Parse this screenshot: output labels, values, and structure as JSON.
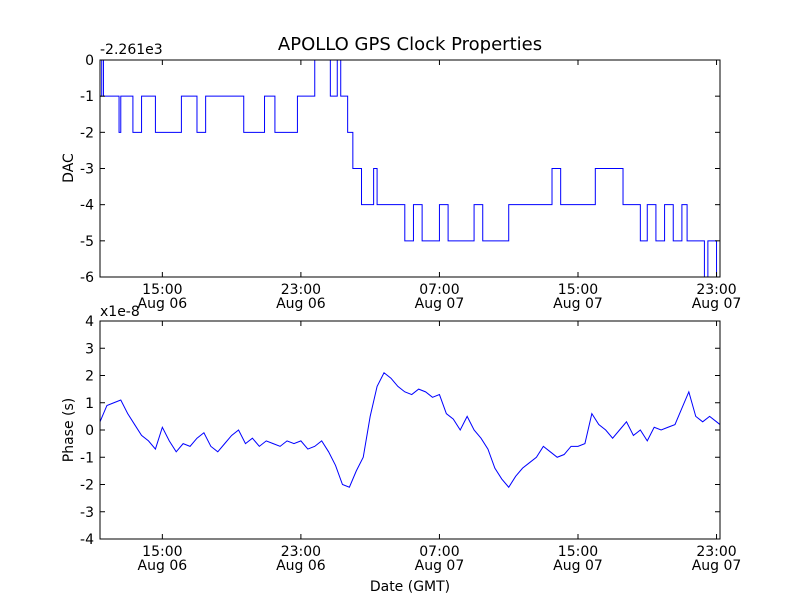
{
  "figure": {
    "title": "APOLLO GPS Clock Properties",
    "xlabel": "Date (GMT)"
  },
  "chart_data": [
    {
      "type": "line",
      "ylabel": "DAC",
      "offset_label": "-2.261e3",
      "ylim": [
        -6,
        0
      ],
      "yticks": [
        0,
        -1,
        -2,
        -3,
        -4,
        -5,
        -6
      ],
      "ytick_labels": [
        "0",
        "-1",
        "-2",
        "-3",
        "-4",
        "-5",
        "-6"
      ],
      "xlim_hours": [
        11.4,
        47.2
      ],
      "xticks_hours": [
        15,
        23,
        31,
        39,
        47
      ],
      "xtick_labels": [
        [
          "15:00",
          "Aug 06"
        ],
        [
          "23:00",
          "Aug 06"
        ],
        [
          "07:00",
          "Aug 07"
        ],
        [
          "15:00",
          "Aug 07"
        ],
        [
          "23:00",
          "Aug 07"
        ]
      ],
      "series": [
        {
          "name": "DAC",
          "color": "#0000ff",
          "x": [
            11.4,
            11.5,
            11.6,
            11.7,
            12.0,
            12.2,
            12.5,
            12.6,
            12.8,
            13.0,
            13.3,
            13.8,
            14.4,
            14.6,
            15.0,
            16.1,
            16.3,
            17.0,
            17.5,
            18.0,
            19.0,
            19.7,
            20.5,
            20.9,
            21.5,
            22.4,
            22.5,
            22.8,
            23.1,
            23.8,
            24.7,
            25.1,
            25.3,
            25.4,
            25.6,
            25.7,
            26.0,
            26.4,
            26.5,
            26.6,
            27.2,
            27.4,
            27.5,
            27.8,
            28.0,
            28.4,
            29.0,
            29.5,
            30.0,
            31.0,
            31.5,
            32.0,
            32.5,
            33.0,
            33.5,
            34.3,
            35.0,
            35.6,
            36.0,
            37.5,
            38.0,
            38.5,
            39.2,
            40.0,
            41.6,
            42.0,
            42.6,
            43.0,
            43.5,
            44.0,
            44.5,
            45.0,
            45.3,
            45.9,
            46.3,
            46.5,
            47.0,
            47.2
          ],
          "y": [
            -1,
            0,
            -1,
            -1,
            -1,
            -1,
            -2,
            -1,
            -1,
            -1,
            -2,
            -1,
            -1,
            -2,
            -2,
            -1,
            -1,
            -2,
            -1,
            -1,
            -1,
            -2,
            -2,
            -1,
            -2,
            -2,
            -2,
            -1,
            -1,
            0,
            -1,
            0,
            -1,
            -1,
            -1,
            -2,
            -3,
            -3,
            -4,
            -4,
            -3,
            -4,
            -4,
            -4,
            -4,
            -4,
            -5,
            -4,
            -5,
            -4,
            -5,
            -5,
            -5,
            -4,
            -5,
            -5,
            -4,
            -4,
            -4,
            -3,
            -4,
            -4,
            -4,
            -3,
            -4,
            -4,
            -5,
            -4,
            -5,
            -4,
            -5,
            -4,
            -5,
            -5,
            -6,
            -5,
            -6,
            -5
          ]
        }
      ]
    },
    {
      "type": "line",
      "ylabel": "Phase (s)",
      "offset_label": "x1e-8",
      "ylim": [
        -4,
        4
      ],
      "yticks": [
        4,
        3,
        2,
        1,
        0,
        -1,
        -2,
        -3,
        -4
      ],
      "ytick_labels": [
        "4",
        "3",
        "2",
        "1",
        "0",
        "-1",
        "-2",
        "-3",
        "-4"
      ],
      "xlim_hours": [
        11.4,
        47.2
      ],
      "xticks_hours": [
        15,
        23,
        31,
        39,
        47
      ],
      "xtick_labels": [
        [
          "15:00",
          "Aug 06"
        ],
        [
          "23:00",
          "Aug 06"
        ],
        [
          "07:00",
          "Aug 07"
        ],
        [
          "15:00",
          "Aug 07"
        ],
        [
          "23:00",
          "Aug 07"
        ]
      ],
      "series": [
        {
          "name": "Phase",
          "color": "#0000ff",
          "x": [
            11.4,
            11.8,
            12.2,
            12.6,
            13.0,
            13.4,
            13.8,
            14.2,
            14.6,
            15.0,
            15.4,
            15.8,
            16.2,
            16.6,
            17.0,
            17.4,
            17.8,
            18.2,
            18.6,
            19.0,
            19.4,
            19.8,
            20.2,
            20.6,
            21.0,
            21.4,
            21.8,
            22.2,
            22.6,
            23.0,
            23.4,
            23.8,
            24.2,
            24.6,
            25.0,
            25.4,
            25.8,
            26.2,
            26.6,
            27.0,
            27.4,
            27.8,
            28.2,
            28.6,
            29.0,
            29.4,
            29.8,
            30.2,
            30.6,
            31.0,
            31.4,
            31.8,
            32.2,
            32.6,
            33.0,
            33.4,
            33.8,
            34.2,
            34.6,
            35.0,
            35.4,
            35.8,
            36.2,
            36.6,
            37.0,
            37.4,
            37.8,
            38.2,
            38.6,
            39.0,
            39.4,
            39.8,
            40.2,
            40.6,
            41.0,
            41.4,
            41.8,
            42.2,
            42.6,
            43.0,
            43.4,
            43.8,
            44.2,
            44.6,
            45.0,
            45.4,
            45.8,
            46.2,
            46.6,
            47.0,
            47.2
          ],
          "y": [
            0.3,
            0.9,
            1.0,
            1.1,
            0.6,
            0.2,
            -0.2,
            -0.4,
            -0.7,
            0.1,
            -0.4,
            -0.8,
            -0.5,
            -0.6,
            -0.3,
            -0.1,
            -0.6,
            -0.8,
            -0.5,
            -0.2,
            0.0,
            -0.5,
            -0.3,
            -0.6,
            -0.4,
            -0.5,
            -0.6,
            -0.4,
            -0.5,
            -0.4,
            -0.7,
            -0.6,
            -0.4,
            -0.8,
            -1.3,
            -2.0,
            -2.1,
            -1.5,
            -1.0,
            0.5,
            1.6,
            2.1,
            1.9,
            1.6,
            1.4,
            1.3,
            1.5,
            1.4,
            1.2,
            1.3,
            0.6,
            0.4,
            0.0,
            0.5,
            0.0,
            -0.3,
            -0.7,
            -1.4,
            -1.8,
            -2.1,
            -1.7,
            -1.4,
            -1.2,
            -1.0,
            -0.6,
            -0.8,
            -1.0,
            -0.9,
            -0.6,
            -0.6,
            -0.5,
            0.6,
            0.2,
            0.0,
            -0.3,
            0.0,
            0.3,
            -0.2,
            0.0,
            -0.4,
            0.1,
            0.0,
            0.1,
            0.2,
            0.8,
            1.4,
            0.5,
            0.3,
            0.5,
            0.3,
            0.2
          ]
        }
      ]
    }
  ]
}
